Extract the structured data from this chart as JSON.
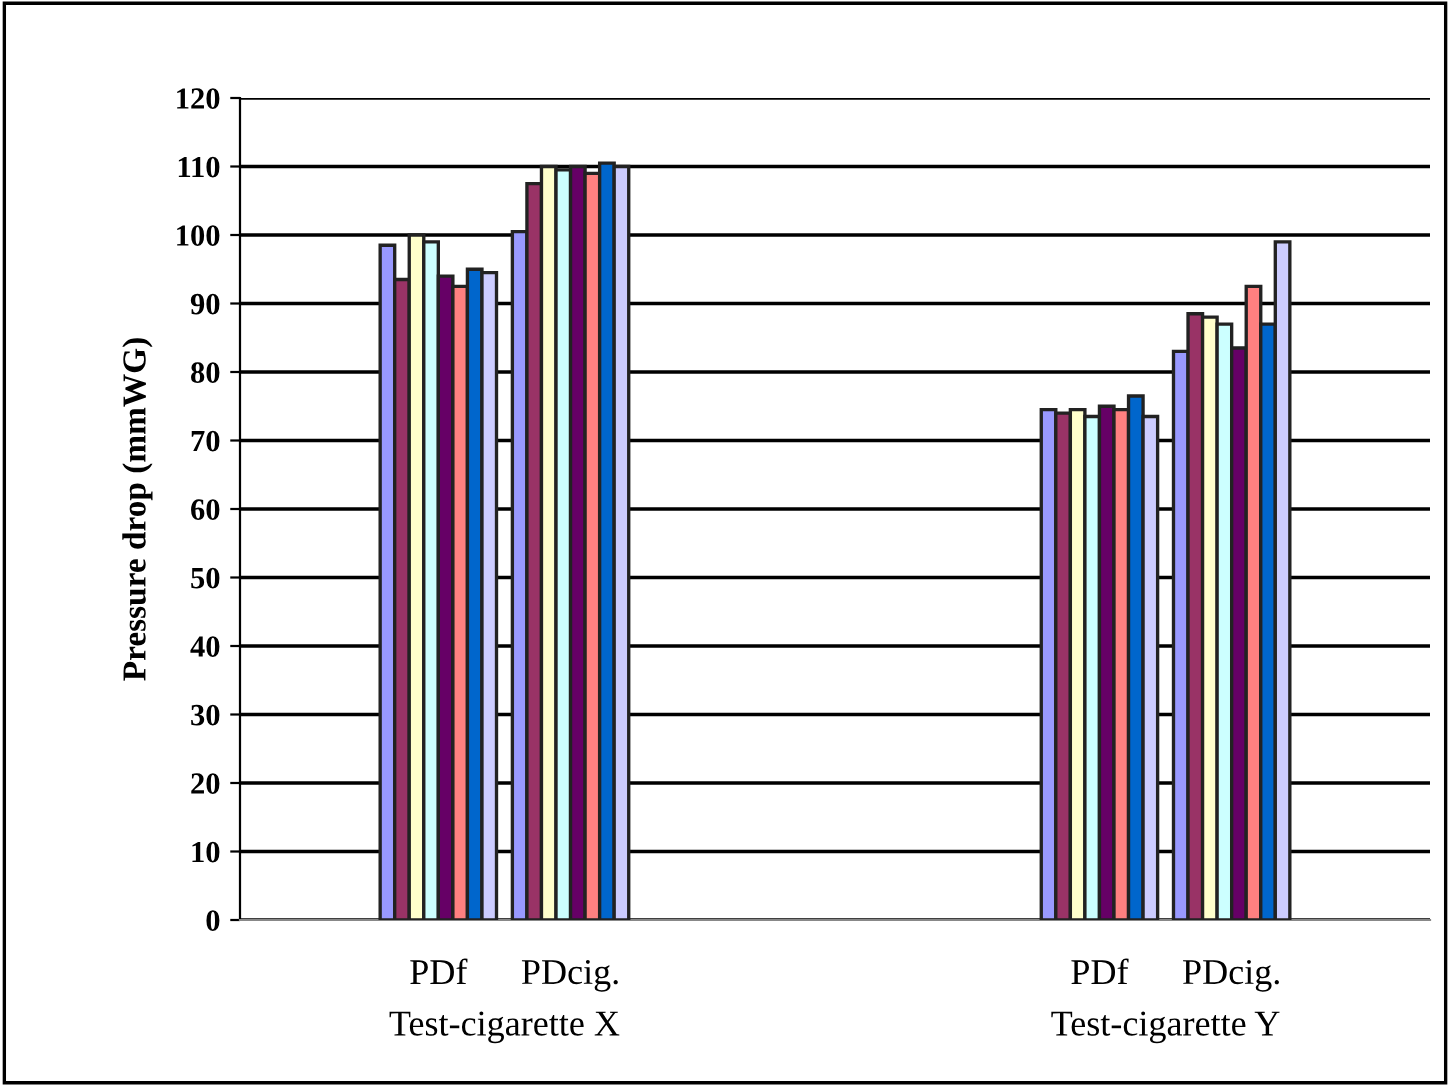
{
  "chart_data": {
    "type": "bar",
    "ylabel": "Pressure drop (mmWG)",
    "categories": [
      null,
      "PDf",
      "PDcig.",
      null,
      null,
      null,
      "PDf",
      "PDcig.",
      null
    ],
    "series": [
      {
        "color": "#9999ff",
        "values": [
          null,
          98.5,
          100.5,
          null,
          null,
          null,
          74.5,
          83,
          null
        ]
      },
      {
        "color": "#993366",
        "values": [
          null,
          93.5,
          107.5,
          null,
          null,
          null,
          74,
          88.5,
          null
        ]
      },
      {
        "color": "#ffffcc",
        "values": [
          null,
          100,
          110,
          null,
          null,
          null,
          74.5,
          88,
          null
        ]
      },
      {
        "color": "#ccffff",
        "values": [
          null,
          99,
          109.5,
          null,
          null,
          null,
          73.5,
          87,
          null
        ]
      },
      {
        "color": "#660066",
        "values": [
          null,
          94,
          110,
          null,
          null,
          null,
          75,
          83.5,
          null
        ]
      },
      {
        "color": "#ff8080",
        "values": [
          null,
          92.5,
          109,
          null,
          null,
          null,
          74.5,
          92.5,
          null
        ]
      },
      {
        "color": "#0066cc",
        "values": [
          null,
          95,
          110.5,
          null,
          null,
          null,
          76.5,
          87,
          null
        ]
      },
      {
        "color": "#ccccff",
        "values": [
          null,
          94.5,
          110,
          null,
          null,
          null,
          73.5,
          99,
          null
        ]
      }
    ],
    "ylim": [
      0,
      120
    ],
    "yticks": [
      0,
      10,
      20,
      30,
      40,
      50,
      60,
      70,
      80,
      90,
      100,
      110,
      120
    ],
    "grid": "y",
    "legend": false,
    "annotations": [
      "Test-cigarette X",
      "Test-cigarette Y"
    ]
  }
}
